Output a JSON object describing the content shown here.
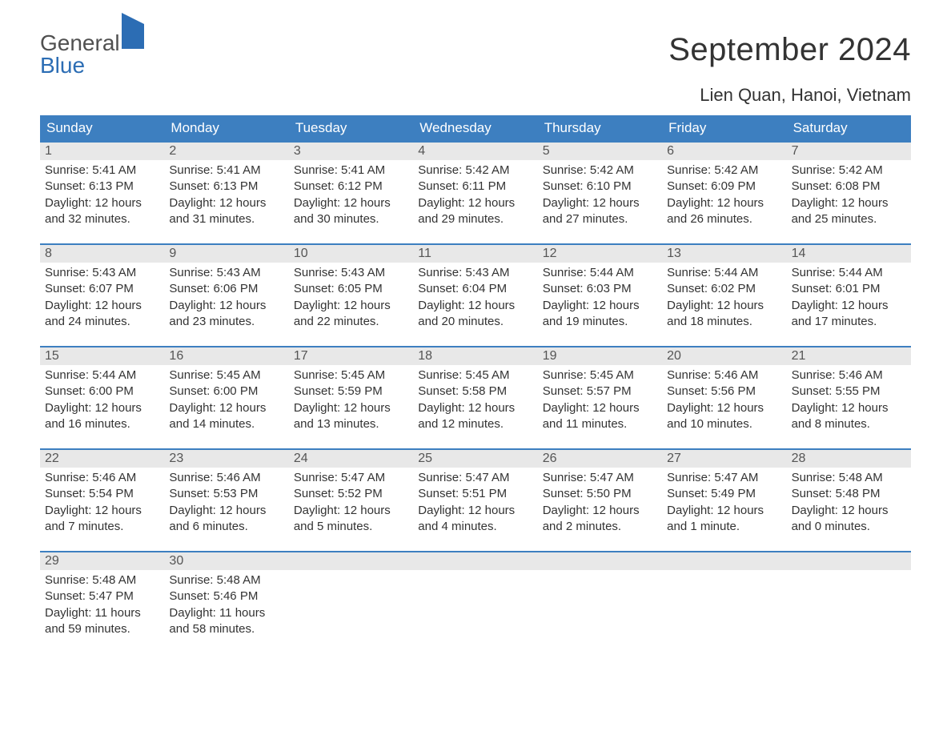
{
  "brand": {
    "word1": "General",
    "word2": "Blue"
  },
  "title": "September 2024",
  "location": "Lien Quan, Hanoi, Vietnam",
  "colors": {
    "header_bg": "#3d7fc0",
    "header_text": "#ffffff",
    "daynum_bg": "#e8e8e8",
    "border_top": "#3d7fc0",
    "body_text": "#333333",
    "brand_blue": "#2c6db4",
    "brand_gray": "#505050",
    "background": "#ffffff"
  },
  "typography": {
    "title_fontsize": 40,
    "location_fontsize": 22,
    "dow_fontsize": 17,
    "daynum_fontsize": 16,
    "body_fontsize": 15
  },
  "days_of_week": [
    "Sunday",
    "Monday",
    "Tuesday",
    "Wednesday",
    "Thursday",
    "Friday",
    "Saturday"
  ],
  "layout": {
    "columns": 7,
    "rows": 5,
    "leading_blanks": 0,
    "trailing_blanks": 5
  },
  "days": [
    {
      "num": "1",
      "sunrise": "Sunrise: 5:41 AM",
      "sunset": "Sunset: 6:13 PM",
      "daylight": "Daylight: 12 hours and 32 minutes."
    },
    {
      "num": "2",
      "sunrise": "Sunrise: 5:41 AM",
      "sunset": "Sunset: 6:13 PM",
      "daylight": "Daylight: 12 hours and 31 minutes."
    },
    {
      "num": "3",
      "sunrise": "Sunrise: 5:41 AM",
      "sunset": "Sunset: 6:12 PM",
      "daylight": "Daylight: 12 hours and 30 minutes."
    },
    {
      "num": "4",
      "sunrise": "Sunrise: 5:42 AM",
      "sunset": "Sunset: 6:11 PM",
      "daylight": "Daylight: 12 hours and 29 minutes."
    },
    {
      "num": "5",
      "sunrise": "Sunrise: 5:42 AM",
      "sunset": "Sunset: 6:10 PM",
      "daylight": "Daylight: 12 hours and 27 minutes."
    },
    {
      "num": "6",
      "sunrise": "Sunrise: 5:42 AM",
      "sunset": "Sunset: 6:09 PM",
      "daylight": "Daylight: 12 hours and 26 minutes."
    },
    {
      "num": "7",
      "sunrise": "Sunrise: 5:42 AM",
      "sunset": "Sunset: 6:08 PM",
      "daylight": "Daylight: 12 hours and 25 minutes."
    },
    {
      "num": "8",
      "sunrise": "Sunrise: 5:43 AM",
      "sunset": "Sunset: 6:07 PM",
      "daylight": "Daylight: 12 hours and 24 minutes."
    },
    {
      "num": "9",
      "sunrise": "Sunrise: 5:43 AM",
      "sunset": "Sunset: 6:06 PM",
      "daylight": "Daylight: 12 hours and 23 minutes."
    },
    {
      "num": "10",
      "sunrise": "Sunrise: 5:43 AM",
      "sunset": "Sunset: 6:05 PM",
      "daylight": "Daylight: 12 hours and 22 minutes."
    },
    {
      "num": "11",
      "sunrise": "Sunrise: 5:43 AM",
      "sunset": "Sunset: 6:04 PM",
      "daylight": "Daylight: 12 hours and 20 minutes."
    },
    {
      "num": "12",
      "sunrise": "Sunrise: 5:44 AM",
      "sunset": "Sunset: 6:03 PM",
      "daylight": "Daylight: 12 hours and 19 minutes."
    },
    {
      "num": "13",
      "sunrise": "Sunrise: 5:44 AM",
      "sunset": "Sunset: 6:02 PM",
      "daylight": "Daylight: 12 hours and 18 minutes."
    },
    {
      "num": "14",
      "sunrise": "Sunrise: 5:44 AM",
      "sunset": "Sunset: 6:01 PM",
      "daylight": "Daylight: 12 hours and 17 minutes."
    },
    {
      "num": "15",
      "sunrise": "Sunrise: 5:44 AM",
      "sunset": "Sunset: 6:00 PM",
      "daylight": "Daylight: 12 hours and 16 minutes."
    },
    {
      "num": "16",
      "sunrise": "Sunrise: 5:45 AM",
      "sunset": "Sunset: 6:00 PM",
      "daylight": "Daylight: 12 hours and 14 minutes."
    },
    {
      "num": "17",
      "sunrise": "Sunrise: 5:45 AM",
      "sunset": "Sunset: 5:59 PM",
      "daylight": "Daylight: 12 hours and 13 minutes."
    },
    {
      "num": "18",
      "sunrise": "Sunrise: 5:45 AM",
      "sunset": "Sunset: 5:58 PM",
      "daylight": "Daylight: 12 hours and 12 minutes."
    },
    {
      "num": "19",
      "sunrise": "Sunrise: 5:45 AM",
      "sunset": "Sunset: 5:57 PM",
      "daylight": "Daylight: 12 hours and 11 minutes."
    },
    {
      "num": "20",
      "sunrise": "Sunrise: 5:46 AM",
      "sunset": "Sunset: 5:56 PM",
      "daylight": "Daylight: 12 hours and 10 minutes."
    },
    {
      "num": "21",
      "sunrise": "Sunrise: 5:46 AM",
      "sunset": "Sunset: 5:55 PM",
      "daylight": "Daylight: 12 hours and 8 minutes."
    },
    {
      "num": "22",
      "sunrise": "Sunrise: 5:46 AM",
      "sunset": "Sunset: 5:54 PM",
      "daylight": "Daylight: 12 hours and 7 minutes."
    },
    {
      "num": "23",
      "sunrise": "Sunrise: 5:46 AM",
      "sunset": "Sunset: 5:53 PM",
      "daylight": "Daylight: 12 hours and 6 minutes."
    },
    {
      "num": "24",
      "sunrise": "Sunrise: 5:47 AM",
      "sunset": "Sunset: 5:52 PM",
      "daylight": "Daylight: 12 hours and 5 minutes."
    },
    {
      "num": "25",
      "sunrise": "Sunrise: 5:47 AM",
      "sunset": "Sunset: 5:51 PM",
      "daylight": "Daylight: 12 hours and 4 minutes."
    },
    {
      "num": "26",
      "sunrise": "Sunrise: 5:47 AM",
      "sunset": "Sunset: 5:50 PM",
      "daylight": "Daylight: 12 hours and 2 minutes."
    },
    {
      "num": "27",
      "sunrise": "Sunrise: 5:47 AM",
      "sunset": "Sunset: 5:49 PM",
      "daylight": "Daylight: 12 hours and 1 minute."
    },
    {
      "num": "28",
      "sunrise": "Sunrise: 5:48 AM",
      "sunset": "Sunset: 5:48 PM",
      "daylight": "Daylight: 12 hours and 0 minutes."
    },
    {
      "num": "29",
      "sunrise": "Sunrise: 5:48 AM",
      "sunset": "Sunset: 5:47 PM",
      "daylight": "Daylight: 11 hours and 59 minutes."
    },
    {
      "num": "30",
      "sunrise": "Sunrise: 5:48 AM",
      "sunset": "Sunset: 5:46 PM",
      "daylight": "Daylight: 11 hours and 58 minutes."
    }
  ]
}
